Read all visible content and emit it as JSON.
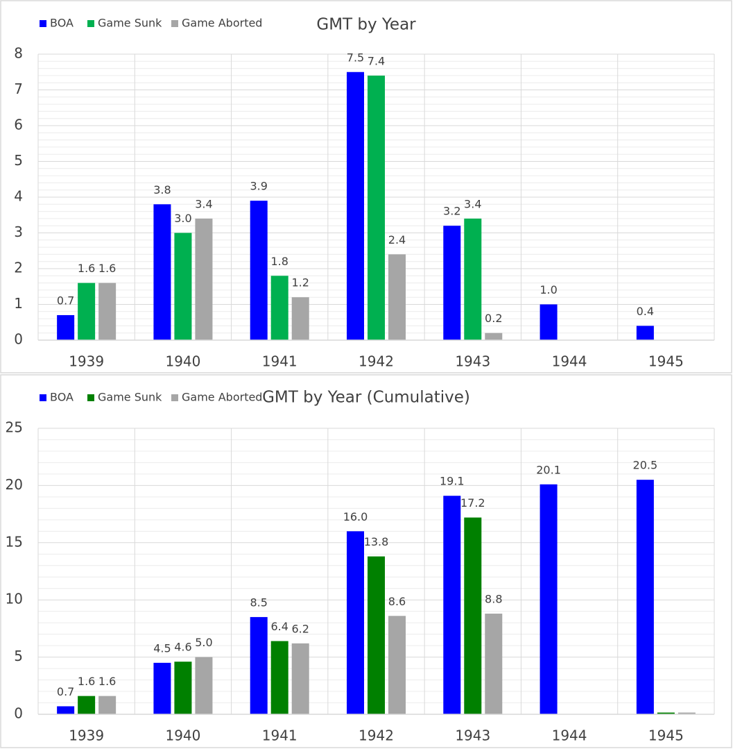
{
  "chart_data": [
    {
      "type": "bar",
      "title": "GMT by Year",
      "categories": [
        "1939",
        "1940",
        "1941",
        "1942",
        "1943",
        "1944",
        "1945"
      ],
      "series": [
        {
          "name": "BOA",
          "color": "#0000ff",
          "values": [
            0.7,
            3.8,
            3.9,
            7.5,
            3.2,
            1.0,
            0.4
          ],
          "value_labels": [
            "0.7",
            "3.8",
            "3.9",
            "7.5",
            "3.2",
            "1.0",
            "0.4"
          ]
        },
        {
          "name": "Game Sunk",
          "color": "#00b050",
          "values": [
            1.6,
            3.0,
            1.8,
            7.4,
            3.4,
            null,
            null
          ],
          "value_labels": [
            "1.6",
            "3.0",
            "1.8",
            "7.4",
            "3.4",
            null,
            null
          ]
        },
        {
          "name": "Game Aborted",
          "color": "#a6a6a6",
          "values": [
            1.6,
            3.4,
            1.2,
            2.4,
            0.2,
            null,
            null
          ],
          "value_labels": [
            "1.6",
            "3.4",
            "1.2",
            "2.4",
            "0.2",
            null,
            null
          ]
        }
      ],
      "ylim": [
        0,
        8
      ],
      "yticks": [
        0,
        1,
        2,
        3,
        4,
        5,
        6,
        7,
        8
      ],
      "grid": true,
      "legend": "top-left"
    },
    {
      "type": "bar",
      "title": "GMT by Year (Cumulative)",
      "categories": [
        "1939",
        "1940",
        "1941",
        "1942",
        "1943",
        "1944",
        "1945"
      ],
      "series": [
        {
          "name": "BOA",
          "color": "#0000ff",
          "values": [
            0.7,
            4.5,
            8.5,
            16.0,
            19.1,
            20.1,
            20.5
          ],
          "value_labels": [
            "0.7",
            "4.5",
            "8.5",
            "16.0",
            "19.1",
            "20.1",
            "20.5"
          ]
        },
        {
          "name": "Game Sunk",
          "color": "#008000",
          "values": [
            1.6,
            4.6,
            6.4,
            13.8,
            17.2,
            null,
            0.15
          ],
          "value_labels": [
            "1.6",
            "4.6",
            "6.4",
            "13.8",
            "17.2",
            null,
            null
          ]
        },
        {
          "name": "Game Aborted",
          "color": "#a6a6a6",
          "values": [
            1.6,
            5.0,
            6.2,
            8.6,
            8.8,
            null,
            0.15
          ],
          "value_labels": [
            "1.6",
            "5.0",
            "6.2",
            "8.6",
            "8.8",
            null,
            null
          ]
        }
      ],
      "ylim": [
        0,
        25
      ],
      "yticks": [
        0,
        5,
        10,
        15,
        20,
        25
      ],
      "grid": true,
      "legend": "top-left"
    }
  ]
}
